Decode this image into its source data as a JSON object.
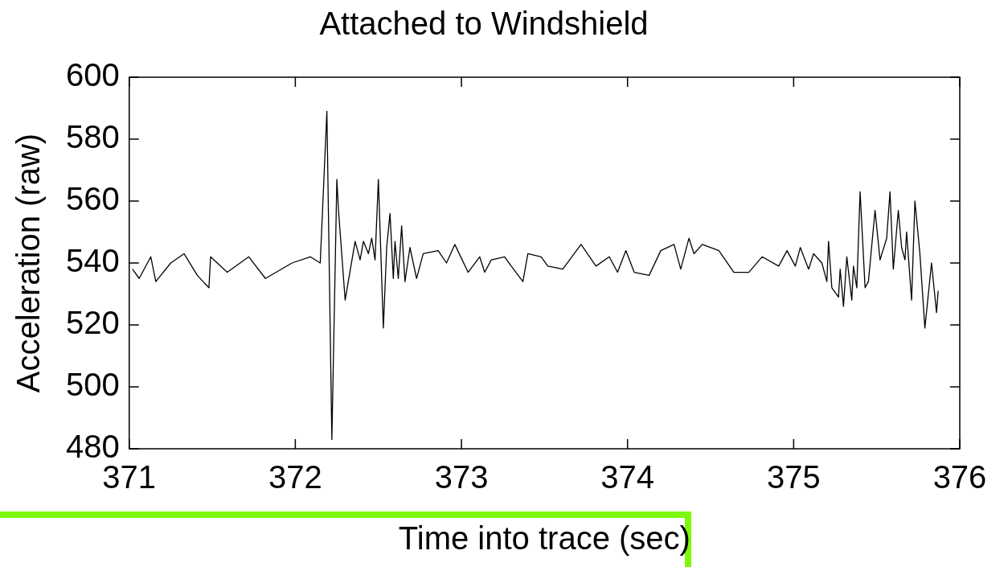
{
  "chart_data": {
    "type": "line",
    "title": "Attached to Windshield",
    "xlabel": "Time into trace (sec)",
    "ylabel": "Acceleration (raw)",
    "x": [
      371.02,
      371.06,
      371.13,
      371.16,
      371.25,
      371.33,
      371.41,
      371.48,
      371.49,
      371.59,
      371.72,
      371.82,
      371.98,
      372.09,
      372.15,
      372.19,
      372.22,
      372.25,
      372.26,
      372.3,
      372.36,
      372.39,
      372.41,
      372.44,
      372.46,
      372.48,
      372.5,
      372.53,
      372.55,
      372.57,
      372.59,
      372.6,
      372.62,
      372.64,
      372.66,
      372.69,
      372.73,
      372.77,
      372.86,
      372.91,
      372.96,
      373.04,
      373.11,
      373.14,
      373.18,
      373.26,
      373.3,
      373.37,
      373.4,
      373.48,
      373.52,
      373.61,
      373.72,
      373.81,
      373.89,
      373.94,
      373.99,
      374.04,
      374.13,
      374.2,
      374.28,
      374.32,
      374.37,
      374.4,
      374.45,
      374.55,
      374.64,
      374.73,
      374.81,
      374.91,
      374.96,
      375.01,
      375.04,
      375.09,
      375.12,
      375.17,
      375.2,
      375.21,
      375.23,
      375.27,
      375.28,
      375.3,
      375.32,
      375.35,
      375.36,
      375.38,
      375.4,
      375.43,
      375.45,
      375.49,
      375.52,
      375.56,
      375.58,
      375.6,
      375.63,
      375.65,
      375.67,
      375.68,
      375.71,
      375.73,
      375.76,
      375.79,
      375.83,
      375.86,
      375.87
    ],
    "series": [
      {
        "color": "#000000",
        "values": [
          538,
          535,
          542,
          534,
          540,
          543,
          536,
          532,
          542,
          537,
          542,
          535,
          540,
          542,
          540,
          589,
          483,
          567,
          557,
          528,
          547,
          541,
          547,
          543,
          548,
          541,
          567,
          519,
          545,
          556,
          535,
          547,
          535,
          552,
          534,
          545,
          535,
          543,
          544,
          540,
          546,
          537,
          542,
          537,
          541,
          542,
          539,
          534,
          543,
          542,
          539,
          538,
          546,
          539,
          542,
          537,
          544,
          537,
          536,
          544,
          546,
          538,
          548,
          543,
          546,
          544,
          537,
          537,
          542,
          539,
          544,
          539,
          545,
          538,
          543,
          540,
          534,
          547,
          532,
          529,
          538,
          526,
          542,
          528,
          539,
          532,
          563,
          532,
          534,
          557,
          541,
          548,
          563,
          538,
          557,
          545,
          541,
          550,
          528,
          560,
          543,
          519,
          540,
          524,
          531
        ]
      }
    ],
    "xlim": [
      371,
      376
    ],
    "xticks": [
      371,
      372,
      373,
      374,
      375,
      376
    ],
    "ylim": [
      480,
      600
    ],
    "yticks": [
      480,
      500,
      520,
      540,
      560,
      580,
      600
    ],
    "grid": false,
    "legend": false,
    "marker": "none",
    "line_style": "solid"
  }
}
